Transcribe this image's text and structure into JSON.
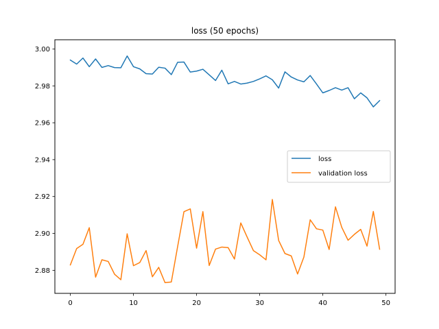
{
  "chart_data": {
    "type": "line",
    "title": "loss (50 epochs)",
    "xlabel": "",
    "ylabel": "",
    "xlim": [
      -2.45,
      51.45
    ],
    "ylim": [
      2.8675,
      3.005
    ],
    "xticks": [
      0,
      10,
      20,
      30,
      40,
      50
    ],
    "yticks": [
      2.88,
      2.9,
      2.92,
      2.94,
      2.96,
      2.98,
      3.0
    ],
    "ytick_labels": [
      "2.88",
      "2.90",
      "2.92",
      "2.94",
      "2.96",
      "2.98",
      "3.00"
    ],
    "grid": false,
    "legend_position": "center-right",
    "x": [
      0,
      1,
      2,
      3,
      4,
      5,
      6,
      7,
      8,
      9,
      10,
      11,
      12,
      13,
      14,
      15,
      16,
      17,
      18,
      19,
      20,
      21,
      22,
      23,
      24,
      25,
      26,
      27,
      28,
      29,
      30,
      31,
      32,
      33,
      34,
      35,
      36,
      37,
      38,
      39,
      40,
      41,
      42,
      43,
      44,
      45,
      46,
      47,
      48,
      49
    ],
    "series": [
      {
        "name": "loss",
        "color": "#1f77b4",
        "values": [
          2.994,
          2.9918,
          2.9951,
          2.9904,
          2.9946,
          2.99,
          2.991,
          2.9899,
          2.9898,
          2.9962,
          2.9904,
          2.9892,
          2.9866,
          2.9864,
          2.9901,
          2.9896,
          2.9861,
          2.9928,
          2.9929,
          2.9875,
          2.988,
          2.989,
          2.986,
          2.9829,
          2.9885,
          2.9811,
          2.9824,
          2.981,
          2.9815,
          2.9824,
          2.9838,
          2.9854,
          2.9833,
          2.9788,
          2.9876,
          2.9848,
          2.9832,
          2.9822,
          2.9856,
          2.981,
          2.9762,
          2.9775,
          2.979,
          2.9777,
          2.979,
          2.973,
          2.9762,
          2.9735,
          2.9686,
          2.972
        ]
      },
      {
        "name": "validation loss",
        "color": "#ff7f0e",
        "values": [
          2.8829,
          2.8918,
          2.8941,
          2.9031,
          2.8763,
          2.8857,
          2.8848,
          2.8779,
          2.8749,
          2.8998,
          2.8825,
          2.8842,
          2.8907,
          2.8765,
          2.8816,
          2.8733,
          2.8737,
          2.8929,
          2.9118,
          2.9133,
          2.892,
          2.9118,
          2.8826,
          2.8915,
          2.8926,
          2.8923,
          2.8861,
          2.9057,
          2.8981,
          2.8907,
          2.8884,
          2.8857,
          2.9184,
          2.8962,
          2.8891,
          2.8878,
          2.878,
          2.8872,
          2.9074,
          2.9025,
          2.9018,
          2.8913,
          2.9144,
          2.9033,
          2.8963,
          2.8995,
          2.9022,
          2.8931,
          2.9119,
          2.8914
        ]
      }
    ]
  }
}
